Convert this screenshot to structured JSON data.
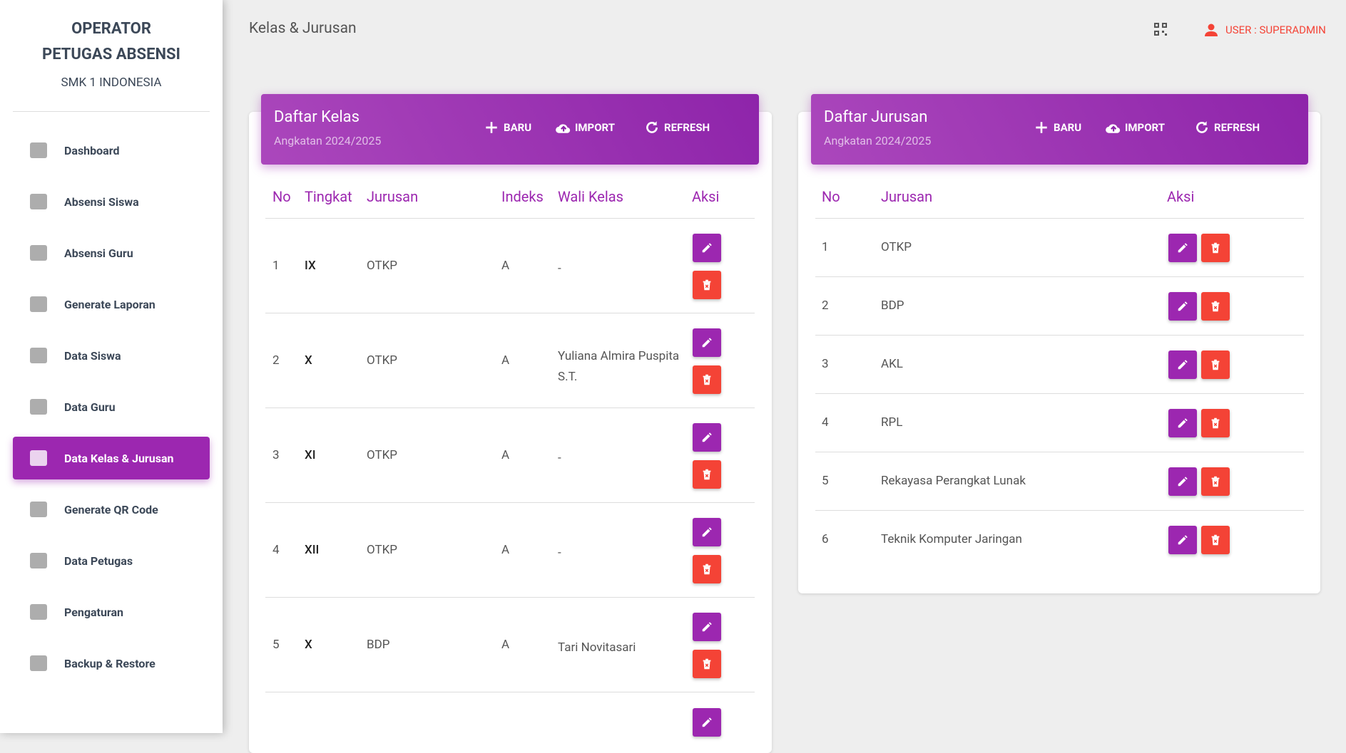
{
  "sidebar": {
    "title_line1": "OPERATOR",
    "title_line2": "PETUGAS ABSENSI",
    "school": "SMK 1 INDONESIA",
    "menu": [
      "Dashboard",
      "Absensi Siswa",
      "Absensi Guru",
      "Generate Laporan",
      "Data Siswa",
      "Data Guru",
      "Data Kelas & Jurusan",
      "Generate QR Code",
      "Data Petugas",
      "Pengaturan",
      "Backup & Restore"
    ],
    "active": 6
  },
  "header": {
    "title": "Kelas & Jurusan",
    "user": "USER : SUPERADMIN"
  },
  "kelas": {
    "title": "Daftar Kelas",
    "subtitle": "Angkatan 2024/2025",
    "buttons": [
      "BARU",
      "IMPORT",
      "REFRESH"
    ],
    "columns": [
      "No",
      "Tingkat",
      "Jurusan",
      "Indeks",
      "Wali Kelas",
      "Aksi"
    ],
    "rows": [
      [
        "1",
        "IX",
        "OTKP",
        "A",
        "-"
      ],
      [
        "2",
        "X",
        "OTKP",
        "A",
        "Yuliana Almira Puspita S.T."
      ],
      [
        "3",
        "XI",
        "OTKP",
        "A",
        "-"
      ],
      [
        "4",
        "XII",
        "OTKP",
        "A",
        "-"
      ],
      [
        "5",
        "X",
        "BDP",
        "A",
        "Tari Novitasari"
      ]
    ]
  },
  "jurusan": {
    "title": "Daftar Jurusan",
    "subtitle": "Angkatan 2024/2025",
    "buttons": [
      "BARU",
      "IMPORT",
      "REFRESH"
    ],
    "columns": [
      "No",
      "Jurusan",
      "Aksi"
    ],
    "rows": [
      [
        "1",
        "OTKP"
      ],
      [
        "2",
        "BDP"
      ],
      [
        "3",
        "AKL"
      ],
      [
        "4",
        "RPL"
      ],
      [
        "5",
        "Rekayasa Perangkat Lunak"
      ],
      [
        "6",
        "Teknik Komputer Jaringan"
      ]
    ]
  }
}
